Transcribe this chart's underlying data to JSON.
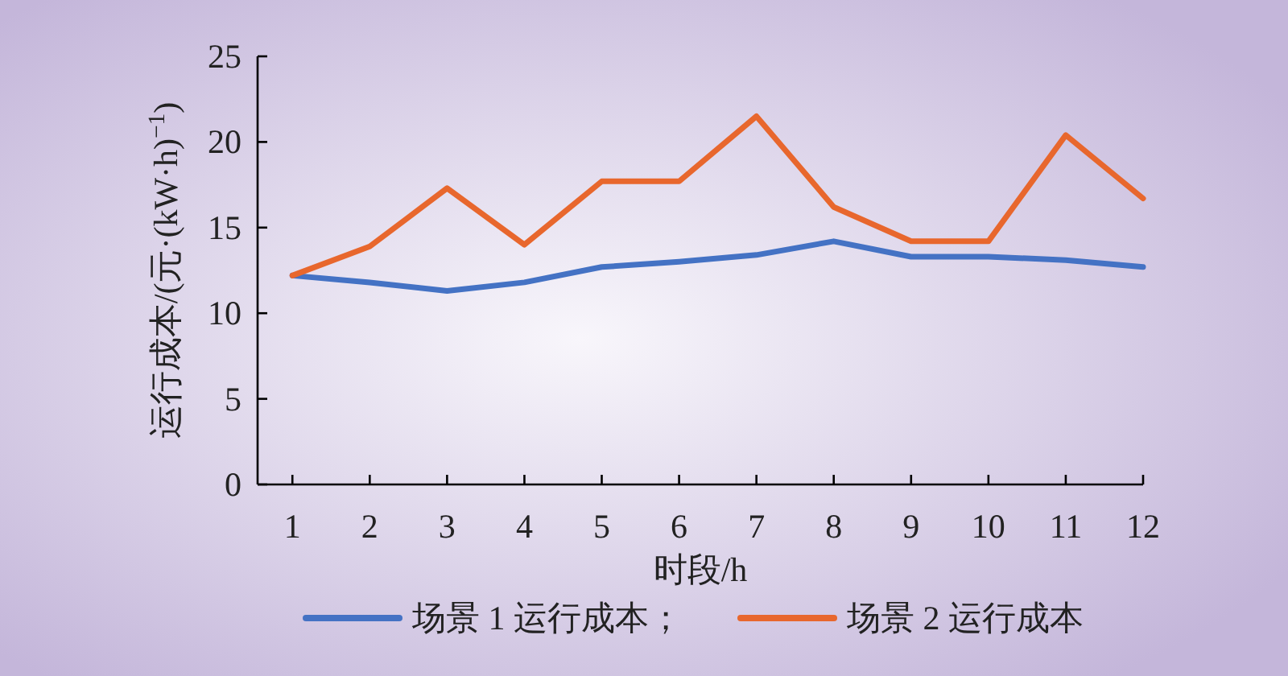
{
  "chart_data": {
    "type": "line",
    "xlabel": "时段/h",
    "ylabel": "运行成本/(元·(kW·h)$^{−1}$)",
    "x": [
      1,
      2,
      3,
      4,
      5,
      6,
      7,
      8,
      9,
      10,
      11,
      12
    ],
    "series": [
      {
        "name": "场景 1 运行成本；",
        "color": "#4472c4",
        "values": [
          12.2,
          11.8,
          11.3,
          11.8,
          12.7,
          13.0,
          13.4,
          14.2,
          13.3,
          13.3,
          13.1,
          12.7
        ]
      },
      {
        "name": "场景 2 运行成本",
        "color": "#e8672d",
        "values": [
          12.2,
          13.9,
          17.3,
          14.0,
          17.7,
          17.7,
          21.5,
          16.2,
          14.2,
          14.2,
          20.4,
          16.7
        ]
      }
    ],
    "xlim": [
      0.55,
      12
    ],
    "xticks": [
      1,
      2,
      3,
      4,
      5,
      6,
      7,
      8,
      9,
      10,
      11,
      12
    ],
    "ylim": [
      0,
      25
    ],
    "yticks": [
      0,
      5,
      10,
      15,
      20,
      25
    ],
    "grid": false,
    "legend": "bottom",
    "marker": "none",
    "line_style": "solid"
  }
}
